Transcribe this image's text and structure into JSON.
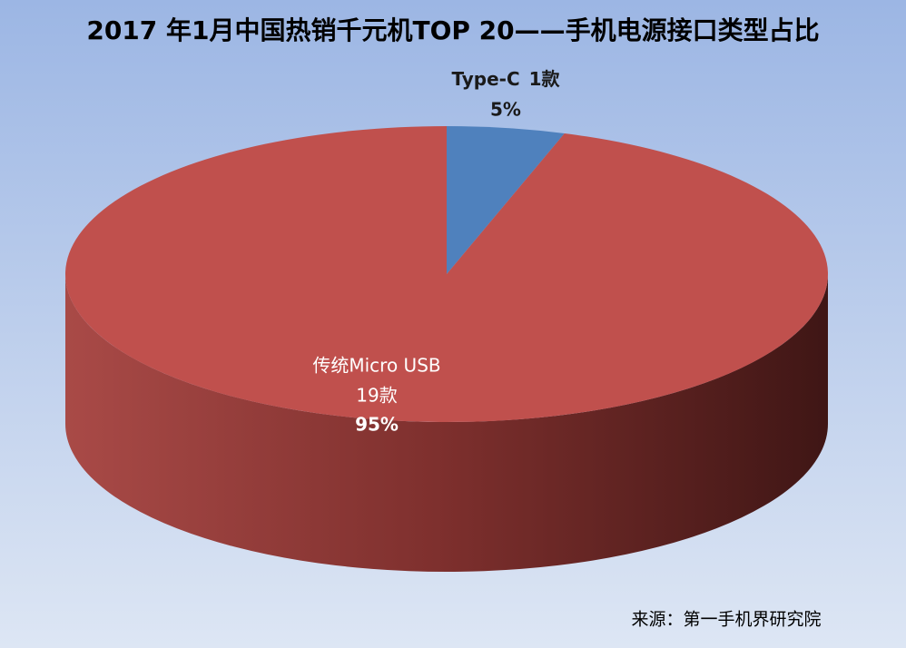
{
  "chart_data": {
    "type": "pie",
    "title": "2017 年1月中国热销千元机TOP 20——手机电源接口类型占比",
    "categories": [
      "Type-C",
      "传统Micro USB"
    ],
    "values": [
      5,
      95
    ],
    "value_labels": [
      "5%",
      "95%"
    ],
    "counts": [
      1,
      19
    ],
    "count_labels": [
      "1款",
      "19款"
    ],
    "colors": [
      "#4f81bd",
      "#c0504d"
    ],
    "source": "来源：第一手机界研究院"
  }
}
